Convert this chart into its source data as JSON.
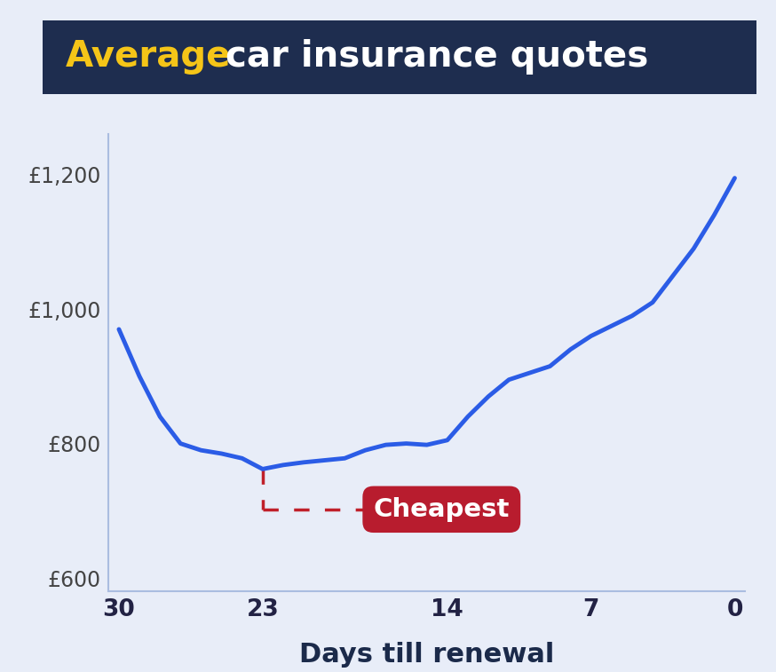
{
  "x": [
    30,
    29,
    28,
    27,
    26,
    25,
    24,
    23,
    22,
    21,
    20,
    19,
    18,
    17,
    16,
    15,
    14,
    13,
    12,
    11,
    10,
    9,
    8,
    7,
    6,
    5,
    4,
    3,
    2,
    1,
    0
  ],
  "y": [
    970,
    900,
    840,
    800,
    790,
    785,
    778,
    762,
    768,
    772,
    775,
    778,
    790,
    798,
    800,
    798,
    805,
    840,
    870,
    895,
    905,
    915,
    940,
    960,
    975,
    990,
    1010,
    1050,
    1090,
    1140,
    1195
  ],
  "line_color": "#2B5CE6",
  "background_color": "#E8EDF8",
  "title_bg_color": "#1E2D4F",
  "title_text_average": "Average",
  "title_text_rest": " car insurance quotes",
  "title_color_average": "#F5C518",
  "title_color_rest": "#FFFFFF",
  "xlabel": "Days till renewal",
  "xlabel_color": "#1B2A4A",
  "yticks": [
    600,
    800,
    1000,
    1200
  ],
  "ytick_labels": [
    "£600",
    "£800",
    "£1,000",
    "£1,200"
  ],
  "xticks": [
    30,
    23,
    14,
    7,
    0
  ],
  "xlim": [
    30.5,
    -0.5
  ],
  "ylim": [
    580,
    1260
  ],
  "cheapest_x": 23,
  "cheapest_y": 762,
  "cheapest_label": "Cheapest",
  "cheapest_label_color": "#FFFFFF",
  "cheapest_box_color": "#B81C2E",
  "dashed_line_color": "#C0202A",
  "line_width": 3.5,
  "axis_color": "#AABDE0"
}
